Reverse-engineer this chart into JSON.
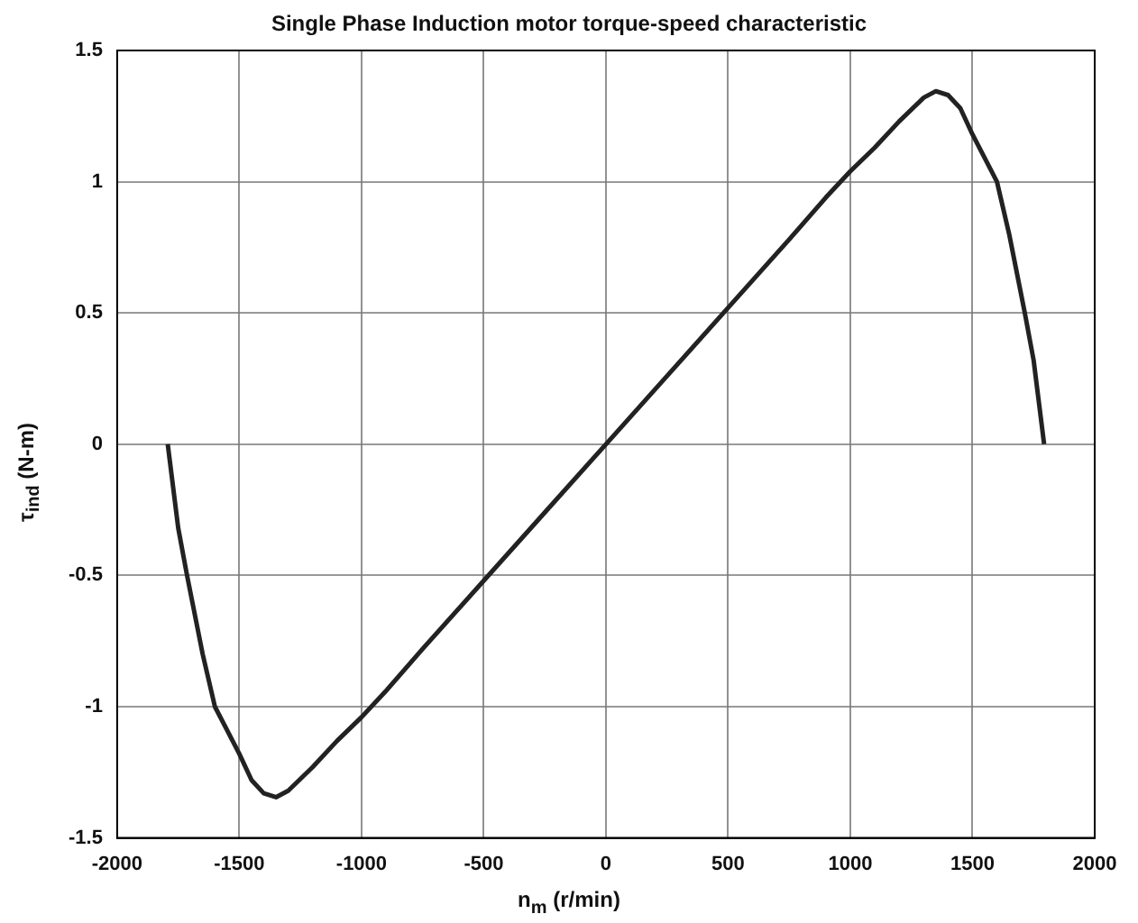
{
  "chart_data": {
    "type": "line",
    "title": "Single Phase Induction motor torque-speed characteristic",
    "xlabel": "n$_{m}$ (r/min)",
    "ylabel": "τ$_{ind}$ (N-m)",
    "x": [
      -1793,
      -1750,
      -1714,
      -1650,
      -1600,
      -1550,
      -1500,
      -1450,
      -1400,
      -1350,
      -1300,
      -1200,
      -1100,
      -1000,
      -900,
      -750,
      -500,
      -250,
      0,
      250,
      500,
      750,
      900,
      1000,
      1100,
      1200,
      1300,
      1350,
      1400,
      1450,
      1500,
      1550,
      1600,
      1650,
      1714,
      1750,
      1793
    ],
    "series": [
      {
        "color": "#222222",
        "values": [
          0,
          -0.32,
          -0.5,
          -0.8,
          -1.0,
          -1.09,
          -1.18,
          -1.28,
          -1.33,
          -1.345,
          -1.32,
          -1.23,
          -1.13,
          -1.04,
          -0.94,
          -0.78,
          -0.52,
          -0.26,
          0,
          0.26,
          0.52,
          0.78,
          0.94,
          1.04,
          1.13,
          1.23,
          1.32,
          1.345,
          1.33,
          1.28,
          1.18,
          1.09,
          1.0,
          0.8,
          0.5,
          0.32,
          0
        ]
      }
    ],
    "xlim": [
      -2000,
      2000
    ],
    "xticks": [
      -2000,
      -1500,
      -1000,
      -500,
      0,
      500,
      1000,
      1500,
      2000
    ],
    "ylim": [
      -1.5,
      1.5
    ],
    "yticks": [
      -1.5,
      -1,
      -0.5,
      0,
      0.5,
      1,
      1.5
    ],
    "grid": true,
    "legend": false,
    "marker": "none",
    "line_style": "solid"
  }
}
